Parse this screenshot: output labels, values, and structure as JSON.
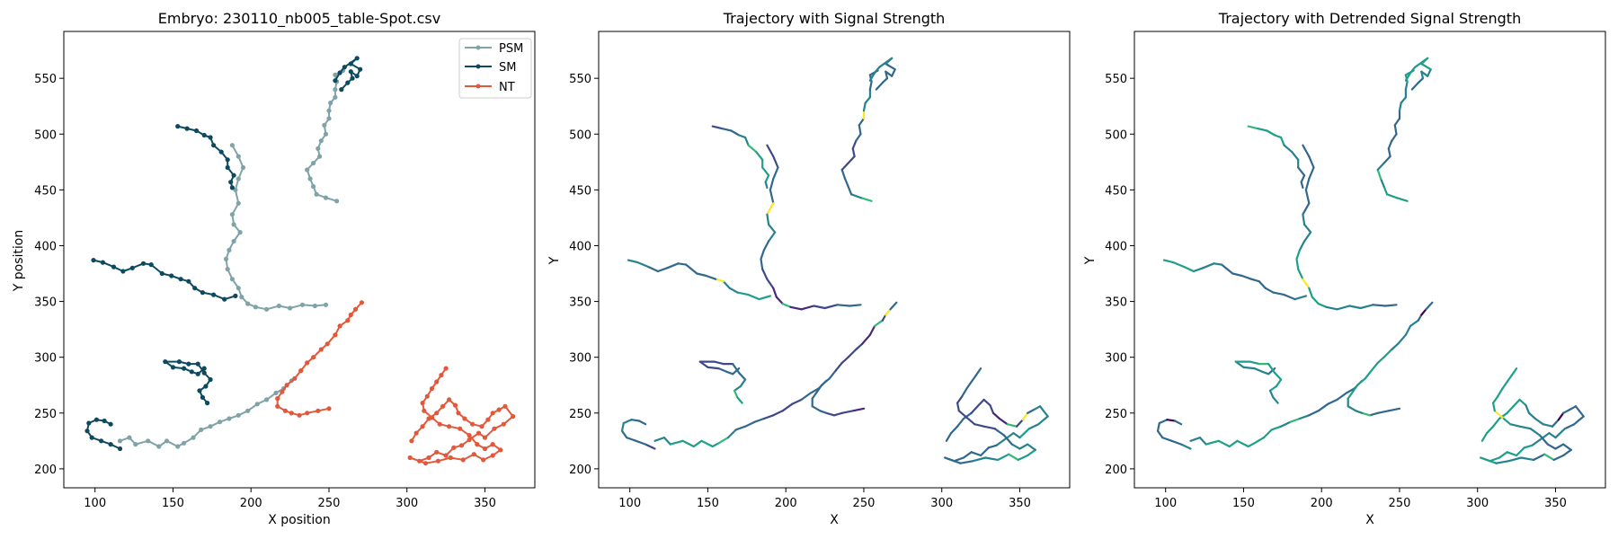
{
  "figure": {
    "background": "#ffffff"
  },
  "chart_data": [
    {
      "type": "line",
      "title": "Embryo: 230110_nb005_table-Spot.csv",
      "xlabel": "X position",
      "ylabel": "Y position",
      "xlim": [
        80,
        382
      ],
      "ylim": [
        183,
        592
      ],
      "xticks": [
        100,
        150,
        200,
        250,
        300,
        350
      ],
      "yticks": [
        200,
        250,
        300,
        350,
        400,
        450,
        500,
        550
      ],
      "grid": false,
      "legend_position": "top-right",
      "series": [
        {
          "name": "PSM",
          "color": "#7fa3a6",
          "marker": "circle",
          "segments": [
            [
              [
                116,
                225
              ],
              [
                122,
                228
              ],
              [
                126,
                222
              ],
              [
                134,
                225
              ],
              [
                141,
                220
              ],
              [
                146,
                225
              ],
              [
                153,
                220
              ],
              [
                157,
                223
              ],
              [
                163,
                228
              ],
              [
                168,
                235
              ],
              [
                174,
                238
              ],
              [
                180,
                242
              ],
              [
                186,
                245
              ],
              [
                192,
                248
              ],
              [
                198,
                252
              ],
              [
                204,
                258
              ],
              [
                210,
                262
              ],
              [
                216,
                268
              ],
              [
                221,
                272
              ],
              [
                226,
                279
              ]
            ],
            [
              [
                255,
                440
              ],
              [
                248,
                443
              ],
              [
                242,
                446
              ],
              [
                240,
                453
              ],
              [
                238,
                460
              ],
              [
                236,
                468
              ],
              [
                240,
                474
              ],
              [
                244,
                480
              ],
              [
                243,
                487
              ],
              [
                245,
                494
              ],
              [
                248,
                500
              ],
              [
                247,
                508
              ],
              [
                250,
                514
              ],
              [
                250,
                521
              ],
              [
                251,
                528
              ],
              [
                254,
                533
              ],
              [
                254,
                540
              ],
              [
                255,
                547
              ],
              [
                254,
                553
              ],
              [
                259,
                557
              ]
            ],
            [
              [
                188,
                490
              ],
              [
                192,
                480
              ],
              [
                195,
                470
              ],
              [
                192,
                460
              ],
              [
                190,
                450
              ],
              [
                192,
                438
              ],
              [
                188,
                428
              ],
              [
                189,
                419
              ],
              [
                193,
                412
              ],
              [
                189,
                404
              ],
              [
                186,
                396
              ],
              [
                184,
                388
              ],
              [
                185,
                379
              ],
              [
                188,
                370
              ],
              [
                192,
                362
              ],
              [
                194,
                354
              ],
              [
                198,
                348
              ],
              [
                203,
                345
              ],
              [
                210,
                343
              ],
              [
                218,
                346
              ],
              [
                225,
                344
              ],
              [
                233,
                347
              ],
              [
                241,
                346
              ],
              [
                248,
                347
              ]
            ]
          ]
        },
        {
          "name": "SM",
          "color": "#0d4a5f",
          "marker": "circle",
          "segments": [
            [
              [
                116,
                218
              ],
              [
                110,
                222
              ],
              [
                104,
                225
              ],
              [
                98,
                228
              ],
              [
                95,
                234
              ],
              [
                96,
                241
              ],
              [
                101,
                244
              ],
              [
                106,
                243
              ],
              [
                110,
                240
              ]
            ],
            [
              [
                170,
                290
              ],
              [
                166,
                285
              ],
              [
                162,
                287
              ],
              [
                157,
                290
              ],
              [
                150,
                291
              ],
              [
                145,
                296
              ],
              [
                154,
                296
              ],
              [
                160,
                294
              ],
              [
                166,
                294
              ],
              [
                170,
                286
              ],
              [
                174,
                280
              ],
              [
                171,
                274
              ],
              [
                167,
                270
              ],
              [
                169,
                264
              ],
              [
                172,
                259
              ]
            ],
            [
              [
                153,
                507
              ],
              [
                159,
                505
              ],
              [
                165,
                503
              ],
              [
                170,
                499
              ],
              [
                174,
                497
              ],
              [
                176,
                490
              ],
              [
                181,
                484
              ],
              [
                185,
                477
              ],
              [
                185,
                470
              ],
              [
                189,
                463
              ],
              [
                187,
                457
              ],
              [
                188,
                452
              ]
            ],
            [
              [
                190,
                355
              ],
              [
                183,
                352
              ],
              [
                176,
                356
              ],
              [
                169,
                358
              ],
              [
                164,
                362
              ],
              [
                160,
                368
              ],
              [
                155,
                370
              ],
              [
                149,
                373
              ],
              [
                143,
                375
              ],
              [
                136,
                383
              ],
              [
                131,
                384
              ],
              [
                124,
                380
              ],
              [
                118,
                377
              ],
              [
                112,
                381
              ],
              [
                105,
                385
              ],
              [
                99,
                387
              ]
            ],
            [
              [
                258,
                540
              ],
              [
                262,
                546
              ],
              [
                265,
                550
              ],
              [
                264,
                556
              ],
              [
                268,
                552
              ],
              [
                270,
                558
              ],
              [
                264,
                563
              ],
              [
                268,
                568
              ],
              [
                260,
                560
              ],
              [
                257,
                555
              ],
              [
                254,
                548
              ]
            ]
          ]
        },
        {
          "name": "NT",
          "color": "#e2583a",
          "marker": "circle",
          "segments": [
            [
              [
                250,
                254
              ],
              [
                243,
                252
              ],
              [
                236,
                250
              ],
              [
                231,
                248
              ],
              [
                226,
                250
              ],
              [
                222,
                252
              ],
              [
                217,
                256
              ],
              [
                217,
                263
              ],
              [
                220,
                269
              ],
              [
                223,
                275
              ],
              [
                228,
                281
              ],
              [
                232,
                288
              ],
              [
                236,
                295
              ],
              [
                240,
                300
              ],
              [
                245,
                307
              ],
              [
                249,
                312
              ],
              [
                254,
                320
              ],
              [
                257,
                328
              ],
              [
                262,
                333
              ],
              [
                264,
                338
              ],
              [
                267,
                343
              ],
              [
                271,
                349
              ]
            ],
            [
              [
                303,
                225
              ],
              [
                306,
                232
              ],
              [
                310,
                238
              ],
              [
                314,
                245
              ],
              [
                319,
                250
              ],
              [
                323,
                256
              ],
              [
                327,
                262
              ],
              [
                331,
                257
              ],
              [
                333,
                250
              ],
              [
                337,
                245
              ],
              [
                342,
                240
              ],
              [
                348,
                238
              ],
              [
                352,
                244
              ],
              [
                355,
                250
              ],
              [
                359,
                253
              ],
              [
                363,
                256
              ],
              [
                368,
                247
              ],
              [
                362,
                240
              ],
              [
                356,
                236
              ],
              [
                350,
                228
              ],
              [
                346,
                232
              ],
              [
                340,
                226
              ],
              [
                335,
                221
              ],
              [
                330,
                219
              ],
              [
                325,
                212
              ],
              [
                319,
                215
              ],
              [
                314,
                210
              ],
              [
                308,
                207
              ],
              [
                302,
                210
              ],
              [
                312,
                205
              ],
              [
                320,
                207
              ],
              [
                328,
                210
              ],
              [
                336,
                208
              ],
              [
                343,
                213
              ],
              [
                349,
                208
              ],
              [
                355,
                212
              ],
              [
                360,
                217
              ],
              [
                355,
                222
              ],
              [
                350,
                218
              ],
              [
                345,
                222
              ],
              [
                340,
                230
              ],
              [
                334,
                236
              ],
              [
                327,
                238
              ],
              [
                321,
                240
              ],
              [
                316,
                246
              ],
              [
                311,
                252
              ],
              [
                310,
                259
              ],
              [
                313,
                265
              ],
              [
                316,
                272
              ],
              [
                319,
                278
              ],
              [
                322,
                284
              ],
              [
                325,
                290
              ]
            ]
          ]
        }
      ]
    },
    {
      "type": "line",
      "title": "Trajectory with Signal Strength",
      "xlabel": "X",
      "ylabel": "Y",
      "xlim": [
        80,
        382
      ],
      "ylim": [
        183,
        592
      ],
      "xticks": [
        100,
        150,
        200,
        250,
        300,
        350
      ],
      "yticks": [
        200,
        250,
        300,
        350,
        400,
        450,
        500,
        550
      ],
      "grid": false,
      "colormap": "viridis"
    },
    {
      "type": "line",
      "title": "Trajectory with Detrended Signal Strength",
      "xlabel": "X",
      "ylabel": "Y",
      "xlim": [
        80,
        382
      ],
      "ylim": [
        183,
        592
      ],
      "xticks": [
        100,
        150,
        200,
        250,
        300,
        350
      ],
      "yticks": [
        200,
        250,
        300,
        350,
        400,
        450,
        500,
        550
      ],
      "grid": false,
      "colormap": "viridis"
    }
  ]
}
